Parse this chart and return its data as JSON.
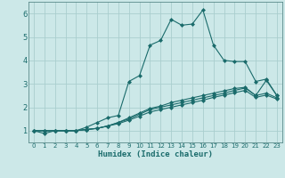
{
  "xlabel": "Humidex (Indice chaleur)",
  "background_color": "#cce8e8",
  "grid_color": "#aacece",
  "line_color": "#1a6b6b",
  "xlim": [
    -0.5,
    23.5
  ],
  "ylim": [
    0.5,
    6.5
  ],
  "xticks": [
    0,
    1,
    2,
    3,
    4,
    5,
    6,
    7,
    8,
    9,
    10,
    11,
    12,
    13,
    14,
    15,
    16,
    17,
    18,
    19,
    20,
    21,
    22,
    23
  ],
  "yticks": [
    1,
    2,
    3,
    4,
    5,
    6
  ],
  "lines": [
    {
      "x": [
        0,
        1,
        2,
        3,
        4,
        5,
        6,
        7,
        8,
        9,
        10,
        11,
        12,
        13,
        14,
        15,
        16,
        17,
        18,
        19,
        20,
        21,
        22,
        23
      ],
      "y": [
        1.0,
        0.88,
        1.0,
        1.0,
        1.0,
        1.15,
        1.35,
        1.55,
        1.65,
        3.1,
        3.35,
        4.65,
        4.85,
        5.75,
        5.5,
        5.55,
        6.15,
        4.65,
        4.0,
        3.95,
        3.95,
        3.1,
        3.2,
        2.5
      ]
    },
    {
      "x": [
        0,
        1,
        2,
        3,
        4,
        5,
        6,
        7,
        8,
        9,
        10,
        11,
        12,
        13,
        14,
        15,
        16,
        17,
        18,
        19,
        20,
        21,
        22,
        23
      ],
      "y": [
        1.0,
        1.0,
        1.0,
        1.0,
        1.0,
        1.05,
        1.1,
        1.2,
        1.35,
        1.55,
        1.75,
        1.95,
        2.05,
        2.2,
        2.3,
        2.4,
        2.5,
        2.6,
        2.7,
        2.8,
        2.85,
        2.5,
        3.15,
        2.5
      ]
    },
    {
      "x": [
        0,
        1,
        2,
        3,
        4,
        5,
        6,
        7,
        8,
        9,
        10,
        11,
        12,
        13,
        14,
        15,
        16,
        17,
        18,
        19,
        20,
        21,
        22,
        23
      ],
      "y": [
        1.0,
        1.0,
        1.0,
        1.0,
        1.0,
        1.05,
        1.1,
        1.2,
        1.35,
        1.5,
        1.7,
        1.9,
        2.0,
        2.1,
        2.2,
        2.3,
        2.4,
        2.5,
        2.6,
        2.72,
        2.82,
        2.5,
        2.6,
        2.4
      ]
    },
    {
      "x": [
        0,
        1,
        2,
        3,
        4,
        5,
        6,
        7,
        8,
        9,
        10,
        11,
        12,
        13,
        14,
        15,
        16,
        17,
        18,
        19,
        20,
        21,
        22,
        23
      ],
      "y": [
        1.0,
        1.0,
        1.0,
        1.0,
        1.0,
        1.05,
        1.1,
        1.2,
        1.3,
        1.45,
        1.62,
        1.8,
        1.9,
        2.0,
        2.1,
        2.2,
        2.3,
        2.42,
        2.52,
        2.62,
        2.72,
        2.42,
        2.52,
        2.35
      ]
    }
  ]
}
